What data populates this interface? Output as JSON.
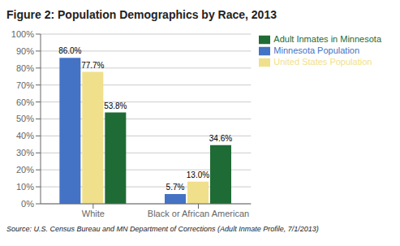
{
  "chart_data": {
    "type": "bar",
    "title": "Figure 2: Population Demographics by Race, 2013",
    "annotations": [
      "Source: U.S. Census Bureau and MN Department of Corrections (Adult Inmate Profile, 7/1/2013)"
    ],
    "categories": [
      "White",
      "Black or African American"
    ],
    "series": [
      {
        "name": "Minnesota Population",
        "color": "#4472C4",
        "values": [
          86.0,
          5.7
        ],
        "value_labels": [
          "86.0%",
          "5.7%"
        ]
      },
      {
        "name": "United States Population",
        "color": "#F0E08C",
        "values": [
          77.7,
          13.0
        ],
        "value_labels": [
          "77.7%",
          "13.0%"
        ]
      },
      {
        "name": "Adult Inmates in Minnesota",
        "color": "#1F6B35",
        "values": [
          53.8,
          34.6
        ],
        "value_labels": [
          "53.8%",
          "34.6%"
        ]
      }
    ],
    "ylim": [
      0,
      100
    ],
    "yticks": [
      {
        "value": 0,
        "label": "0%"
      },
      {
        "value": 10,
        "label": "10%"
      },
      {
        "value": 20,
        "label": "20%"
      },
      {
        "value": 30,
        "label": "30%"
      },
      {
        "value": 40,
        "label": "40%"
      },
      {
        "value": 50,
        "label": "50%"
      },
      {
        "value": 60,
        "label": "60%"
      },
      {
        "value": 70,
        "label": "70%"
      },
      {
        "value": 80,
        "label": "80%"
      },
      {
        "value": 90,
        "label": "90%"
      },
      {
        "value": 100,
        "label": "100%"
      }
    ],
    "grid": true,
    "data_labels": true,
    "legend": "upper right"
  }
}
